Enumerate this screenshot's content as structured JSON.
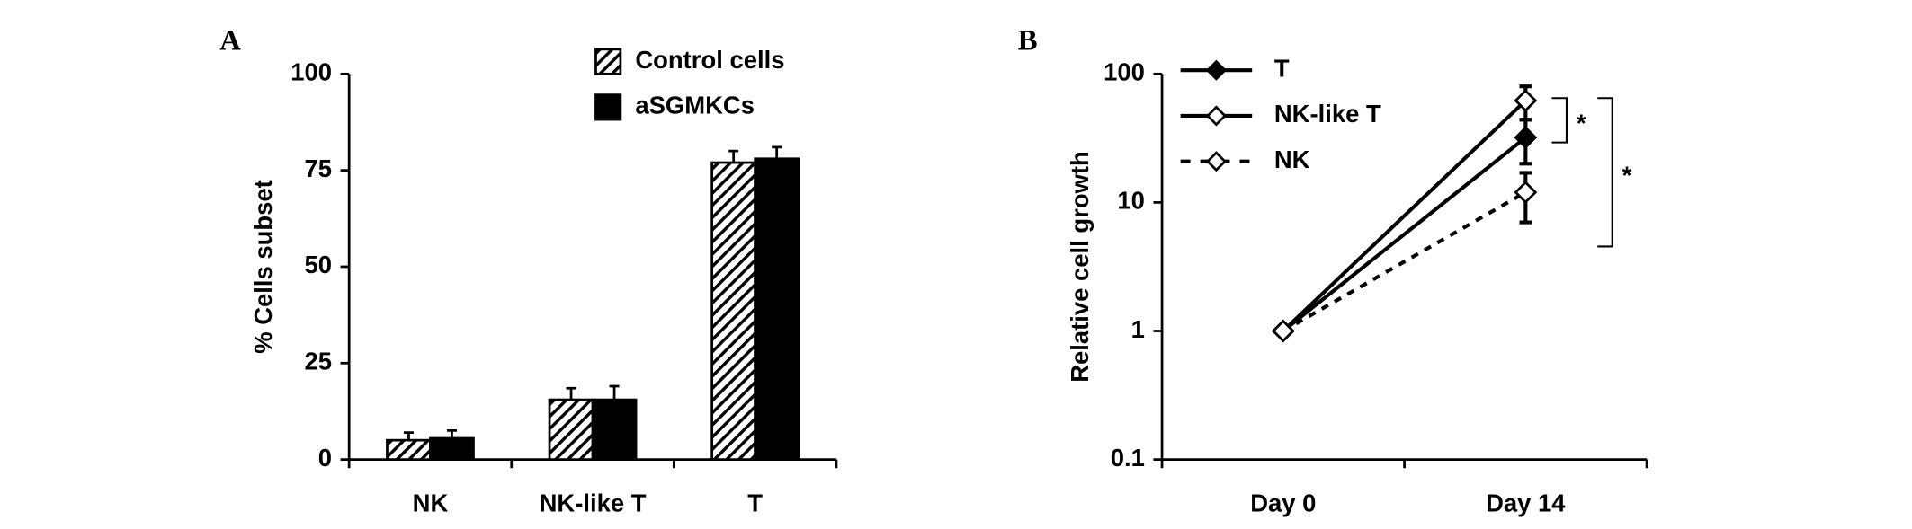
{
  "chart_data": [
    {
      "type": "bar",
      "panel_label": "A",
      "y_label": "% Cells subset",
      "categories": [
        "NK",
        "NK-like T",
        "T"
      ],
      "series": [
        {
          "name": "Control cells",
          "color": "#000000",
          "pattern": "hatch",
          "values": [
            5,
            15.5,
            77
          ],
          "errors": [
            2,
            3,
            3
          ]
        },
        {
          "name": "aSGMKCs",
          "color": "#000000",
          "pattern": "solid",
          "values": [
            5.5,
            15.5,
            78
          ],
          "errors": [
            2,
            3.5,
            3
          ]
        }
      ],
      "ylim": [
        0,
        100
      ],
      "yticks": [
        0,
        25,
        50,
        75,
        100
      ],
      "legend": "top-right"
    },
    {
      "type": "line",
      "panel_label": "B",
      "y_label": "Relative cell growth",
      "categories": [
        "Day 0",
        "Day 14"
      ],
      "series": [
        {
          "name": "T",
          "color": "#000000",
          "marker_fill": "#000000",
          "line_style": "solid",
          "values": [
            1,
            32
          ],
          "errors": [
            0,
            12
          ]
        },
        {
          "name": "NK-like T",
          "color": "#000000",
          "marker_fill": "#ffffff",
          "line_style": "solid",
          "values": [
            1,
            62
          ],
          "errors": [
            0,
            18
          ]
        },
        {
          "name": "NK",
          "color": "#000000",
          "marker_fill": "#ffffff",
          "line_style": "dashed",
          "values": [
            1,
            12
          ],
          "errors": [
            0,
            5
          ]
        }
      ],
      "log_scale": true,
      "ylim": [
        0.1,
        100
      ],
      "yticks": [
        0.1,
        1,
        10,
        100
      ],
      "legend": "top-left",
      "annotations": [
        {
          "text": "*"
        },
        {
          "text": "*"
        }
      ]
    }
  ]
}
